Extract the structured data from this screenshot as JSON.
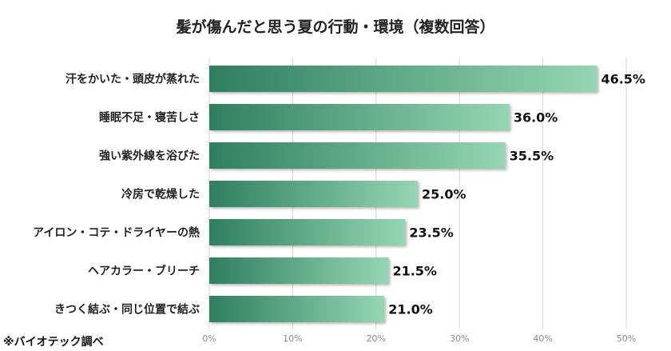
{
  "chart_data": {
    "type": "bar",
    "orientation": "horizontal",
    "title": "髪が傷んだと思う夏の行動・環境（複数回答）",
    "categories": [
      "汗をかいた・頭皮が蒸れた",
      "睡眠不足・寝苦しさ",
      "強い紫外線を浴びた",
      "冷房で乾燥した",
      "アイロン・コテ・ドライヤーの熱",
      "ヘアカラー・ブリーチ",
      "きつく結ぶ・同じ位置で結ぶ"
    ],
    "values": [
      46.5,
      36.0,
      35.5,
      25.0,
      23.5,
      21.5,
      21.0
    ],
    "value_labels": [
      "46.5%",
      "36.0%",
      "35.5%",
      "25.0%",
      "23.5%",
      "21.5%",
      "21.0%"
    ],
    "xlim": [
      0,
      50
    ],
    "ticks": [
      0,
      10,
      20,
      30,
      40,
      50
    ],
    "tick_labels": [
      "0%",
      "10%",
      "20%",
      "30%",
      "40%",
      "50%"
    ],
    "grid": true,
    "colors": {
      "bar_start": "#2f7f5f",
      "bar_end": "#95d6b4",
      "grid": "#d4d4d4"
    }
  },
  "source_note": "※バイオテック調べ"
}
